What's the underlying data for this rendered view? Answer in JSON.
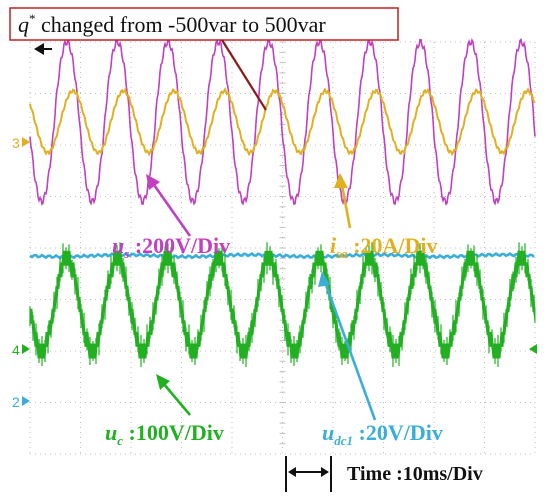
{
  "annotation": {
    "q_symbol": "q",
    "q_sup": "*",
    "text": " changed from -500var to 500var"
  },
  "colors": {
    "us": "#c040c0",
    "isa": "#e0b020",
    "udc1": "#3aaed8",
    "uc": "#22b022",
    "grid": "#bfbfbf",
    "annotation_box": "#c02020",
    "arrow_dark_red": "#8b1a1a",
    "text_black": "#111111"
  },
  "labels": {
    "us": {
      "sym": "u",
      "sub": "s",
      "text": " :200V/Div"
    },
    "isa": {
      "sym": "i",
      "sub": "sa",
      "text": " :20A/Div"
    },
    "uc": {
      "sym": "u",
      "sub": "c",
      "text": " :100V/Div"
    },
    "udc1": {
      "sym": "u",
      "sub": "dc1",
      "text": " :20V/Div"
    },
    "time": "Time :10ms/Div"
  },
  "channel_markers": [
    {
      "text": "3",
      "color": "#e0b020"
    },
    {
      "text": "4",
      "color": "#22b022"
    },
    {
      "text": "2",
      "color": "#3aaed8"
    }
  ],
  "chart_data": {
    "type": "line",
    "title": "",
    "x_unit_per_div": "10ms",
    "divisions": {
      "x": 10,
      "y": 8
    },
    "series": [
      {
        "name": "us",
        "scale": "200V/Div",
        "period_div": 1.0,
        "amplitude_div": 1.55,
        "center_div": 1.55
      },
      {
        "name": "isa",
        "scale": "20A/Div",
        "period_div": 1.0,
        "amplitude_div": 0.6,
        "center_div": 1.55
      },
      {
        "name": "udc1",
        "scale": "20V/Div",
        "level_div": 4.15
      },
      {
        "name": "uc",
        "scale": "100V/Div",
        "period_div": 1.0,
        "amplitude_div": 0.9,
        "center_div": 5.1
      }
    ]
  }
}
